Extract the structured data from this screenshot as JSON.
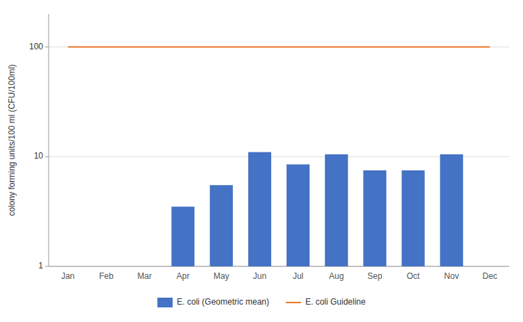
{
  "chart_data": {
    "type": "bar",
    "categories": [
      "Jan",
      "Feb",
      "Mar",
      "Apr",
      "May",
      "Jun",
      "Jul",
      "Aug",
      "Sep",
      "Oct",
      "Nov",
      "Dec"
    ],
    "series": [
      {
        "name": "E. coli (Geometric mean)",
        "type": "bar",
        "color": "#4472C4",
        "values": [
          null,
          null,
          null,
          3.5,
          5.5,
          11.0,
          8.5,
          10.5,
          7.5,
          7.5,
          10.5,
          null
        ]
      },
      {
        "name": "E. coli Guideline",
        "type": "line",
        "color": "#E87722",
        "values": [
          100,
          100,
          100,
          100,
          100,
          100,
          100,
          100,
          100,
          100,
          100,
          100
        ]
      }
    ],
    "y_label": "colony forming units/100 ml (CFU/100ml)",
    "log": "y",
    "ylim": [
      1,
      200
    ],
    "yticks": [
      1,
      10,
      100
    ],
    "grid": true,
    "legend": "bottom"
  }
}
